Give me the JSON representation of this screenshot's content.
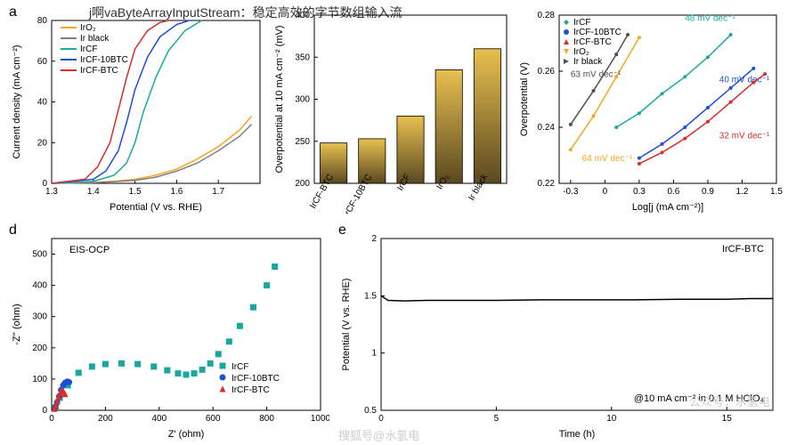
{
  "top_overlay_text": "j啊vaByteArrayInputStream：稳定高效的字节数组输入流",
  "panel_a": {
    "label": "a",
    "type": "line",
    "xlabel": "Potential (V vs. RHE)",
    "ylabel": "Current density (mA cm⁻²)",
    "xlim": [
      1.3,
      1.8
    ],
    "xticks": [
      1.3,
      1.4,
      1.5,
      1.6,
      1.7
    ],
    "ylim": [
      0,
      80
    ],
    "yticks": [
      0,
      20,
      40,
      60,
      80
    ],
    "series": [
      {
        "name": "IrO₂",
        "color": "#f5a623",
        "x": [
          1.3,
          1.4,
          1.45,
          1.5,
          1.55,
          1.6,
          1.65,
          1.7,
          1.75,
          1.78
        ],
        "y": [
          0,
          0.5,
          1,
          2,
          4,
          7,
          12,
          18,
          26,
          33
        ]
      },
      {
        "name": "Ir black",
        "color": "#808080",
        "x": [
          1.3,
          1.4,
          1.45,
          1.5,
          1.55,
          1.6,
          1.65,
          1.7,
          1.75,
          1.78
        ],
        "y": [
          0,
          0.3,
          0.8,
          1.5,
          3,
          6,
          10,
          16,
          23,
          29
        ]
      },
      {
        "name": "IrCF",
        "color": "#1aa89c",
        "x": [
          1.3,
          1.4,
          1.45,
          1.48,
          1.5,
          1.52,
          1.55,
          1.58,
          1.62,
          1.66
        ],
        "y": [
          0,
          1,
          4,
          10,
          20,
          35,
          52,
          65,
          75,
          80
        ]
      },
      {
        "name": "IrCF-10BTC",
        "color": "#1e4fd6",
        "x": [
          1.3,
          1.4,
          1.43,
          1.46,
          1.48,
          1.5,
          1.53,
          1.56,
          1.6,
          1.63
        ],
        "y": [
          0,
          2,
          6,
          16,
          30,
          46,
          62,
          72,
          78,
          80
        ]
      },
      {
        "name": "IrCF-BTC",
        "color": "#d62d2d",
        "x": [
          1.3,
          1.38,
          1.41,
          1.44,
          1.46,
          1.48,
          1.5,
          1.53,
          1.56,
          1.58
        ],
        "y": [
          0,
          2,
          8,
          20,
          36,
          52,
          66,
          75,
          79,
          80
        ]
      }
    ],
    "line_width": 1.5,
    "bg": "#ffffff"
  },
  "panel_b": {
    "type": "bar",
    "ylabel": "Overpotential at 10 mA cm⁻² (mV)",
    "ylim": [
      200,
      400
    ],
    "yticks": [
      200,
      250,
      300,
      350,
      400
    ],
    "categories": [
      "IrCF-BTC",
      "IrCF-10BTC",
      "IrCF",
      "IrO₂",
      "Ir black"
    ],
    "values": [
      248,
      253,
      280,
      335,
      360
    ],
    "bar_fill_top": "#e8c050",
    "bar_fill_bottom": "#5a4820",
    "bar_border": "#000000",
    "rotate_labels": -60
  },
  "panel_c": {
    "type": "scatter",
    "xlabel": "Log[j (mA cm⁻²)]",
    "ylabel": "Overpotential (V)",
    "xlim": [
      -0.4,
      1.5
    ],
    "xticks": [
      -0.3,
      0,
      0.3,
      0.6,
      0.9,
      1.2,
      1.5
    ],
    "ylim": [
      0.22,
      0.28
    ],
    "yticks": [
      0.22,
      0.24,
      0.26,
      0.28
    ],
    "series": [
      {
        "name": "IrCF",
        "color": "#1aa89c",
        "slope_label": "48 mV dec⁻¹",
        "label_color": "#1aa89c",
        "lx": 0.7,
        "ly": 0.278,
        "x": [
          0.1,
          0.3,
          0.5,
          0.7,
          0.9,
          1.1
        ],
        "y": [
          0.24,
          0.245,
          0.252,
          0.258,
          0.265,
          0.273
        ]
      },
      {
        "name": "IrCF-10BTC",
        "color": "#1e4fd6",
        "slope_label": "40 mV dec⁻¹",
        "label_color": "#1e4fd6",
        "lx": 1.0,
        "ly": 0.256,
        "x": [
          0.3,
          0.5,
          0.7,
          0.9,
          1.1,
          1.3
        ],
        "y": [
          0.229,
          0.234,
          0.24,
          0.247,
          0.254,
          0.261
        ]
      },
      {
        "name": "IrCF-BTC",
        "color": "#d62d2d",
        "slope_label": "32 mV dec⁻¹",
        "label_color": "#d62d2d",
        "lx": 1.0,
        "ly": 0.236,
        "x": [
          0.3,
          0.5,
          0.7,
          0.9,
          1.1,
          1.3,
          1.4
        ],
        "y": [
          0.227,
          0.231,
          0.236,
          0.242,
          0.249,
          0.256,
          0.259
        ]
      },
      {
        "name": "IrO₂",
        "color": "#f5a623",
        "slope_label": "64 mV dec⁻¹",
        "label_color": "#f5a623",
        "lx": -0.2,
        "ly": 0.228,
        "x": [
          -0.3,
          -0.1,
          0.1,
          0.3
        ],
        "y": [
          0.232,
          0.244,
          0.258,
          0.272
        ]
      },
      {
        "name": "Ir black",
        "color": "#505050",
        "slope_label": "63 mV dec⁻¹",
        "label_color": "#505050",
        "lx": -0.3,
        "ly": 0.258,
        "x": [
          -0.3,
          -0.1,
          0.1,
          0.2
        ],
        "y": [
          0.241,
          0.253,
          0.266,
          0.273
        ]
      }
    ],
    "legend_items": [
      {
        "name": "IrCF",
        "color": "#1aa89c",
        "marker": "diamond"
      },
      {
        "name": "IrCF-10BTC",
        "color": "#1e4fd6",
        "marker": "circle"
      },
      {
        "name": "IrCF-BTC",
        "color": "#d62d2d",
        "marker": "triangle-up"
      },
      {
        "name": "IrO₂",
        "color": "#f5a623",
        "marker": "triangle-down"
      },
      {
        "name": "Ir black",
        "color": "#505050",
        "marker": "triangle-right"
      }
    ]
  },
  "panel_d": {
    "label": "d",
    "type": "scatter",
    "title": "EIS-OCP",
    "xlabel": "Z' (ohm)",
    "ylabel": "-Z'' (ohm)",
    "xlim": [
      0,
      1000
    ],
    "xticks": [
      0,
      200,
      400,
      600,
      800,
      1000
    ],
    "ylim": [
      0,
      550
    ],
    "yticks": [
      0,
      100,
      200,
      300,
      400,
      500
    ],
    "series": [
      {
        "name": "IrCF",
        "color": "#1aa89c",
        "marker": "square",
        "x": [
          15,
          30,
          60,
          100,
          150,
          200,
          260,
          320,
          380,
          430,
          470,
          500,
          530,
          560,
          590,
          620,
          660,
          700,
          750,
          800,
          830
        ],
        "y": [
          10,
          40,
          80,
          120,
          140,
          148,
          150,
          148,
          140,
          128,
          118,
          114,
          118,
          130,
          150,
          180,
          220,
          270,
          330,
          400,
          460
        ]
      },
      {
        "name": "IrCF-10BTC",
        "color": "#1e4fd6",
        "marker": "circle",
        "x": [
          12,
          20,
          28,
          35,
          43,
          50,
          58,
          65
        ],
        "y": [
          8,
          25,
          45,
          65,
          80,
          88,
          92,
          90
        ]
      },
      {
        "name": "IrCF-BTC",
        "color": "#d62d2d",
        "marker": "triangle-up",
        "x": [
          10,
          15,
          20,
          25,
          30,
          35,
          40,
          45,
          50
        ],
        "y": [
          5,
          15,
          28,
          42,
          55,
          62,
          64,
          60,
          52
        ]
      }
    ]
  },
  "panel_e": {
    "label": "e",
    "type": "line",
    "xlabel": "Time (h)",
    "ylabel": "Potential (V vs. RHE)",
    "xlim": [
      0,
      17
    ],
    "xticks": [
      0,
      5,
      10,
      15
    ],
    "ylim": [
      0.5,
      2.0
    ],
    "yticks": [
      0.5,
      1.0,
      1.5,
      2.0
    ],
    "annotation_tr": "IrCF-BTC",
    "annotation_br": "@10 mA cm⁻² in 0.1 M HClO₄",
    "series": [
      {
        "name": "trace",
        "color": "#000000",
        "x": [
          0,
          0.3,
          1,
          2,
          3,
          5,
          7,
          9,
          11,
          13,
          15,
          16,
          17
        ],
        "y": [
          1.5,
          1.46,
          1.455,
          1.46,
          1.46,
          1.46,
          1.465,
          1.465,
          1.465,
          1.47,
          1.47,
          1.475,
          1.475
        ]
      }
    ]
  },
  "watermark_bottom": "搜狐号@水氢电",
  "watermark_right": "公众号：水氢电"
}
